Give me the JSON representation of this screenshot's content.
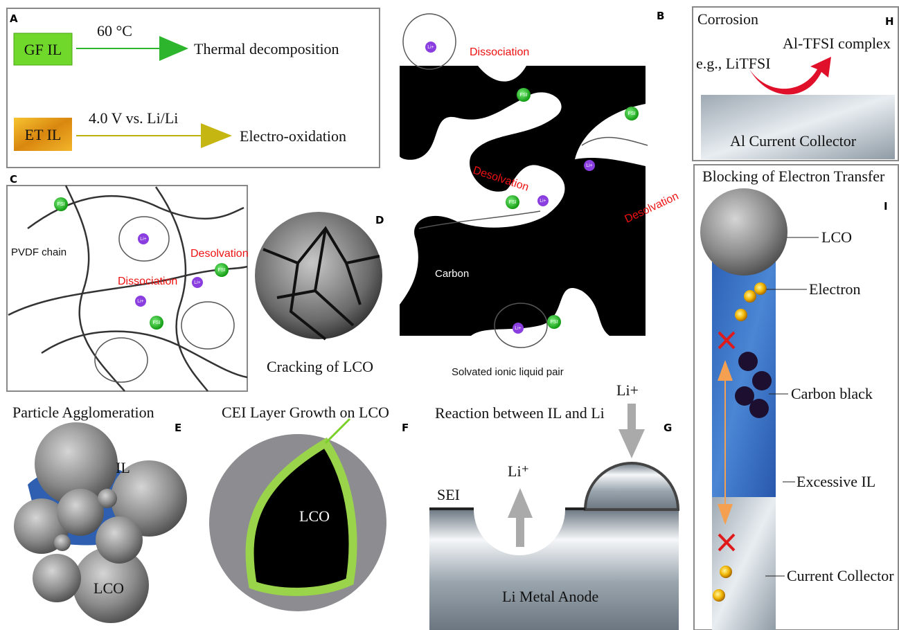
{
  "panels": {
    "a": {
      "letter": "A",
      "gf": "GF IL",
      "gf_condition": "60 °C",
      "gf_result": "Thermal decomposition",
      "et": "ET IL",
      "et_condition": "4.0 V vs. Li/Li",
      "et_result": "Electro-oxidation"
    },
    "b": {
      "letter": "B",
      "dissociation": "Dissociation",
      "desolvation_1": "Desolvation",
      "desolvation_2": "Desolvation",
      "carbon": "Carbon",
      "caption": "Solvated ionic liquid pair",
      "fsi": "FSI",
      "li": "Li+"
    },
    "c": {
      "letter": "C",
      "chain": "PVDF chain",
      "desolvation": "Desolvation",
      "dissociation": "Dissociation"
    },
    "d": {
      "letter": "D",
      "caption": "Cracking of LCO"
    },
    "e": {
      "title": "Particle Agglomeration",
      "letter": "E",
      "il": "IL",
      "lco": "LCO"
    },
    "f": {
      "title": "CEI Layer Growth on LCO",
      "letter": "F",
      "lco": "LCO"
    },
    "g": {
      "title": "Reaction between IL and Li",
      "letter": "G",
      "li_in": "Li+",
      "li_out": "Li⁺",
      "sei": "SEI",
      "anode": "Li Metal Anode"
    },
    "h": {
      "title": "Corrosion",
      "letter": "H",
      "complex": "Al-TFSI complex",
      "salt": "e.g., LiTFSI",
      "collector": "Al Current Collector"
    },
    "i": {
      "title": "Blocking of Electron Transfer",
      "letter": "I",
      "lco": "LCO",
      "electron": "Electron",
      "carbon_black": "Carbon black",
      "il": "Excessive IL",
      "collector": "Current Collector"
    }
  }
}
